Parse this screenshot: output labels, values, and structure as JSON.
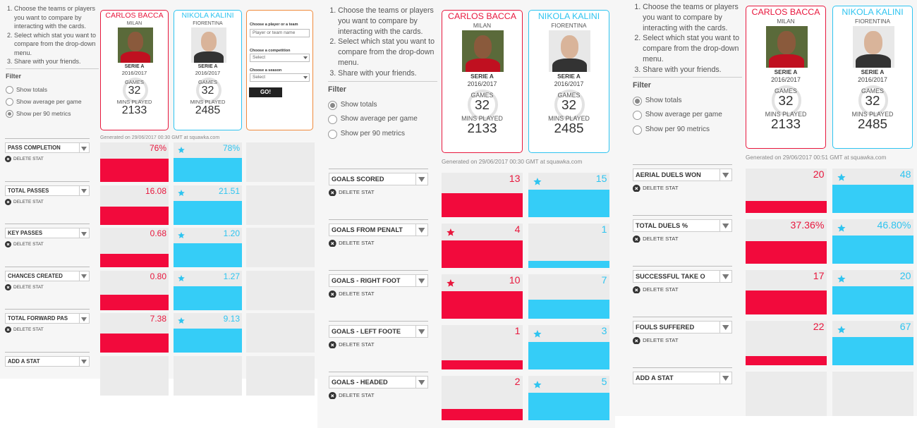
{
  "panels": [
    {
      "instructions": [
        "Choose the teams or players you want to compare by interacting with the cards.",
        "Select which stat you want to compare from the drop-down menu.",
        "Share with your friends."
      ],
      "filter_label": "Filter",
      "filter_options": [
        {
          "label": "Show totals",
          "checked": false
        },
        {
          "label": "Show average per game",
          "checked": false
        },
        {
          "label": "Show per 90 metrics",
          "checked": true
        }
      ],
      "players": [
        {
          "name": "CARLOS BACCA",
          "team": "MILAN",
          "competition": "SERIE A",
          "season": "2016/2017",
          "games_label": "GAMES",
          "games": 32,
          "mins_label": "MINS PLAYED",
          "mins": 2133
        },
        {
          "name": "NIKOLA KALINI",
          "team": "FIORENTINA",
          "competition": "SERIE A",
          "season": "2016/2017",
          "games_label": "GAMES",
          "games": 32,
          "mins_label": "MINS PLAYED",
          "mins": 2485
        }
      ],
      "chooser": {
        "player_label": "Choose a player or a team",
        "player_placeholder": "Player or team name",
        "competition_label": "Choose a competition",
        "competition_select": "Select",
        "season_label": "Choose a season",
        "season_select": "Select",
        "go": "GO!"
      },
      "generated": "Generated on 29/06/2017 00:30 GMT at squawka.com",
      "stats": [
        {
          "name": "PASS COMPLETION",
          "delete": "DELETE STAT",
          "values": [
            76,
            78
          ],
          "value_labels": [
            "76%",
            "78%"
          ]
        },
        {
          "name": "TOTAL PASSES",
          "delete": "DELETE STAT",
          "values": [
            16.08,
            21.51
          ]
        },
        {
          "name": "KEY PASSES",
          "delete": "DELETE STAT",
          "values": [
            0.68,
            1.2
          ],
          "value_labels": [
            "0.68",
            "1.20"
          ]
        },
        {
          "name": "CHANCES CREATED",
          "delete": "DELETE STAT",
          "values": [
            0.8,
            1.27
          ],
          "value_labels": [
            "0.80",
            "1.27"
          ]
        },
        {
          "name": "TOTAL FORWARD PAS",
          "delete": "DELETE STAT",
          "values": [
            7.38,
            9.13
          ]
        }
      ],
      "add_stat": "ADD A STAT"
    },
    {
      "instructions": [
        "Choose the teams or players you want to compare by interacting with the cards.",
        "Select which stat you want to compare from the drop-down menu.",
        "Share with your friends."
      ],
      "filter_label": "Filter",
      "filter_options": [
        {
          "label": "Show totals",
          "checked": true
        },
        {
          "label": "Show average per game",
          "checked": false
        },
        {
          "label": "Show per 90 metrics",
          "checked": false
        }
      ],
      "players": [
        {
          "name": "CARLOS BACCA",
          "team": "MILAN",
          "competition": "SERIE A",
          "season": "2016/2017",
          "games_label": "GAMES",
          "games": 32,
          "mins_label": "MINS PLAYED",
          "mins": 2133
        },
        {
          "name": "NIKOLA KALINI",
          "team": "FIORENTINA",
          "competition": "SERIE A",
          "season": "2016/2017",
          "games_label": "GAMES",
          "games": 32,
          "mins_label": "MINS PLAYED",
          "mins": 2485
        }
      ],
      "generated": "Generated on 29/06/2017 00:30 GMT at squawka.com",
      "stats": [
        {
          "name": "GOALS SCORED",
          "delete": "DELETE STAT",
          "values": [
            13,
            15
          ]
        },
        {
          "name": "GOALS FROM PENALT",
          "delete": "DELETE STAT",
          "values": [
            4,
            1
          ]
        },
        {
          "name": "GOALS - RIGHT FOOT",
          "delete": "DELETE STAT",
          "values": [
            10,
            7
          ]
        },
        {
          "name": "GOALS - LEFT FOOTE",
          "delete": "DELETE STAT",
          "values": [
            1,
            3
          ]
        },
        {
          "name": "GOALS - HEADED",
          "delete": "DELETE STAT",
          "values": [
            2,
            5
          ]
        }
      ]
    },
    {
      "instructions": [
        "Choose the teams or players you want to compare by interacting with the cards.",
        "Select which stat you want to compare from the drop-down menu.",
        "Share with your friends."
      ],
      "filter_label": "Filter",
      "filter_options": [
        {
          "label": "Show totals",
          "checked": true
        },
        {
          "label": "Show average per game",
          "checked": false
        },
        {
          "label": "Show per 90 metrics",
          "checked": false
        }
      ],
      "players": [
        {
          "name": "CARLOS BACCA",
          "team": "MILAN",
          "competition": "SERIE A",
          "season": "2016/2017",
          "games_label": "GAMES",
          "games": 32,
          "mins_label": "MINS PLAYED",
          "mins": 2133
        },
        {
          "name": "NIKOLA KALINI",
          "team": "FIORENTINA",
          "competition": "SERIE A",
          "season": "2016/2017",
          "games_label": "GAMES",
          "games": 32,
          "mins_label": "MINS PLAYED",
          "mins": 2485
        }
      ],
      "generated": "Generated on 29/06/2017 00:51 GMT at squawka.com",
      "stats": [
        {
          "name": "AERIAL DUELS WON",
          "delete": "DELETE STAT",
          "values": [
            20,
            48
          ]
        },
        {
          "name": "TOTAL DUELS %",
          "delete": "DELETE STAT",
          "values": [
            37.36,
            46.8
          ],
          "value_labels": [
            "37.36%",
            "46.80%"
          ]
        },
        {
          "name": "SUCCESSFUL TAKE O",
          "delete": "DELETE STAT",
          "values": [
            17,
            20
          ]
        },
        {
          "name": "FOULS SUFFERED",
          "delete": "DELETE STAT",
          "values": [
            22,
            67
          ]
        }
      ],
      "add_stat": "ADD A STAT"
    }
  ]
}
